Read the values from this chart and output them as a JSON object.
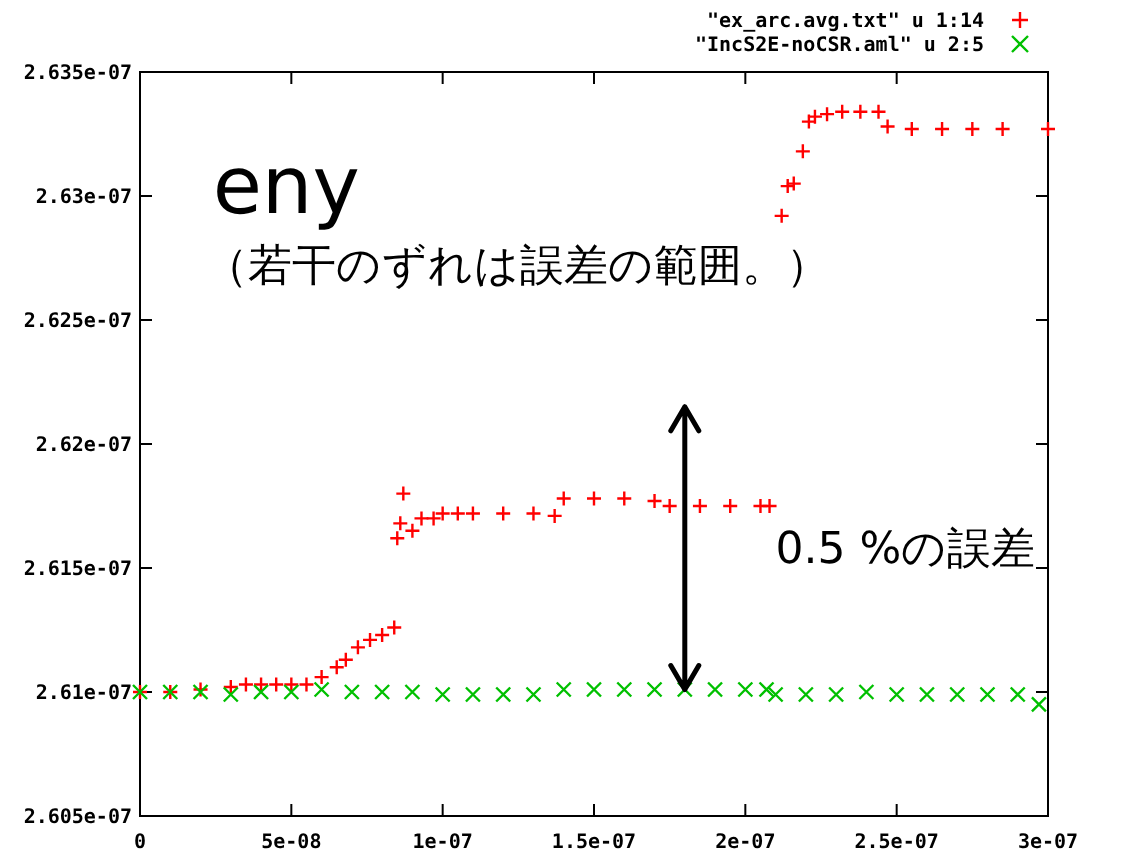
{
  "chart_data": {
    "type": "scatter",
    "annotations": [
      "eny",
      "（若干のずれは誤差の範囲。）",
      "0.5 %の誤差"
    ],
    "xlim": [
      0,
      3e-07
    ],
    "ylim": [
      2.605e-07,
      2.635e-07
    ],
    "xticks": [
      0,
      {
        "value": 5e-08,
        "label": "5e-08"
      },
      {
        "value": 1e-07,
        "label": "1e-07"
      },
      {
        "value": 1.5e-07,
        "label": "1.5e-07"
      },
      {
        "value": 2e-07,
        "label": "2e-07"
      },
      {
        "value": 2.5e-07,
        "label": "2.5e-07"
      },
      {
        "value": 3e-07,
        "label": "3e-07"
      }
    ],
    "yticks": [
      {
        "value": 2.605e-07,
        "label": "2.605e-07"
      },
      {
        "value": 2.61e-07,
        "label": "2.61e-07"
      },
      {
        "value": 2.615e-07,
        "label": "2.615e-07"
      },
      {
        "value": 2.62e-07,
        "label": "2.62e-07"
      },
      {
        "value": 2.625e-07,
        "label": "2.625e-07"
      },
      {
        "value": 2.63e-07,
        "label": "2.63e-07"
      },
      {
        "value": 2.635e-07,
        "label": "2.635e-07"
      }
    ],
    "grid": false,
    "legend": "top right",
    "series": [
      {
        "name": "\"ex_arc.avg.txt\" u 1:14",
        "color": "#ff0000",
        "marker": "plus",
        "x": [
          0,
          1e-08,
          2e-08,
          3e-08,
          3.5e-08,
          4e-08,
          4.5e-08,
          5e-08,
          5.5e-08,
          6e-08,
          6.5e-08,
          6.8e-08,
          7.2e-08,
          7.6e-08,
          8e-08,
          8.4e-08,
          8.5e-08,
          8.6e-08,
          8.7e-08,
          9e-08,
          9.3e-08,
          9.7e-08,
          1e-07,
          1.05e-07,
          1.1e-07,
          1.2e-07,
          1.3e-07,
          1.37e-07,
          1.4e-07,
          1.5e-07,
          1.6e-07,
          1.7e-07,
          1.75e-07,
          1.85e-07,
          1.95e-07,
          2.05e-07,
          2.08e-07,
          2.12e-07,
          2.14e-07,
          2.16e-07,
          2.19e-07,
          2.21e-07,
          2.23e-07,
          2.27e-07,
          2.32e-07,
          2.38e-07,
          2.44e-07,
          2.47e-07,
          2.55e-07,
          2.65e-07,
          2.75e-07,
          2.85e-07,
          3e-07
        ],
        "values": [
          2.61e-07,
          2.61e-07,
          2.6101e-07,
          2.6102e-07,
          2.6103e-07,
          2.6103e-07,
          2.6103e-07,
          2.6103e-07,
          2.6103e-07,
          2.6106e-07,
          2.611e-07,
          2.6113e-07,
          2.6118e-07,
          2.6121e-07,
          2.6123e-07,
          2.6126e-07,
          2.6162e-07,
          2.6168e-07,
          2.618e-07,
          2.6165e-07,
          2.617e-07,
          2.617e-07,
          2.6172e-07,
          2.6172e-07,
          2.6172e-07,
          2.6172e-07,
          2.6172e-07,
          2.6171e-07,
          2.6178e-07,
          2.6178e-07,
          2.6178e-07,
          2.6177e-07,
          2.6175e-07,
          2.6175e-07,
          2.6175e-07,
          2.6175e-07,
          2.6175e-07,
          2.6292e-07,
          2.6304e-07,
          2.6305e-07,
          2.6318e-07,
          2.633e-07,
          2.6332e-07,
          2.6333e-07,
          2.6334e-07,
          2.6334e-07,
          2.6334e-07,
          2.6328e-07,
          2.6327e-07,
          2.6327e-07,
          2.6327e-07,
          2.6327e-07,
          2.6327e-07
        ]
      },
      {
        "name": "\"IncS2E-noCSR.aml\" u 2:5",
        "color": "#00c000",
        "marker": "cross",
        "x": [
          0,
          1e-08,
          2e-08,
          3e-08,
          4e-08,
          5e-08,
          6e-08,
          7e-08,
          8e-08,
          9e-08,
          1e-07,
          1.1e-07,
          1.2e-07,
          1.3e-07,
          1.4e-07,
          1.5e-07,
          1.6e-07,
          1.7e-07,
          1.8e-07,
          1.9e-07,
          2e-07,
          2.07e-07,
          2.1e-07,
          2.2e-07,
          2.3e-07,
          2.4e-07,
          2.5e-07,
          2.6e-07,
          2.7e-07,
          2.8e-07,
          2.9e-07,
          2.97e-07
        ],
        "values": [
          2.61e-07,
          2.61e-07,
          2.61e-07,
          2.6099e-07,
          2.61e-07,
          2.61e-07,
          2.6101e-07,
          2.61e-07,
          2.61e-07,
          2.61e-07,
          2.6099e-07,
          2.6099e-07,
          2.6099e-07,
          2.6099e-07,
          2.6101e-07,
          2.6101e-07,
          2.6101e-07,
          2.6101e-07,
          2.6101e-07,
          2.6101e-07,
          2.6101e-07,
          2.6101e-07,
          2.6099e-07,
          2.6099e-07,
          2.6099e-07,
          2.61e-07,
          2.6099e-07,
          2.6099e-07,
          2.6099e-07,
          2.6099e-07,
          2.6099e-07,
          2.6095e-07
        ]
      }
    ]
  }
}
